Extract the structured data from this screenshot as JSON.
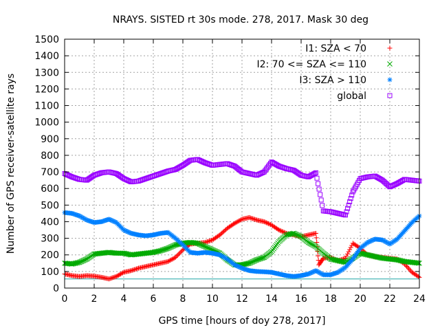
{
  "chart_data": {
    "type": "scatter",
    "title": "NRAYS. SISTED rt 30s mode. 278, 2017. Mask 30 deg",
    "xlabel": "GPS time [hours of doy 278, 2017]",
    "ylabel": "Number of GPS receiver-satellite rays",
    "xlim": [
      0,
      24
    ],
    "ylim": [
      0,
      1500
    ],
    "xticks": [
      "0",
      "2",
      "4",
      "6",
      "8",
      "10",
      "12",
      "14",
      "16",
      "18",
      "20",
      "22",
      "24"
    ],
    "yticks": [
      "0",
      "100",
      "200",
      "300",
      "400",
      "500",
      "600",
      "700",
      "800",
      "900",
      "1000",
      "1100",
      "1200",
      "1300",
      "1400",
      "1500"
    ],
    "grid": true,
    "legend_position": "top-right",
    "reference_line": {
      "y": 55,
      "color": "#1fa5a5"
    },
    "series": [
      {
        "name": "I1: SZA < 70",
        "marker": "+",
        "color": "#ff0000",
        "points": [
          [
            0,
            85
          ],
          [
            0.5,
            75
          ],
          [
            1,
            70
          ],
          [
            1.5,
            75
          ],
          [
            2,
            72
          ],
          [
            2.5,
            65
          ],
          [
            3,
            55
          ],
          [
            3.5,
            70
          ],
          [
            4,
            95
          ],
          [
            4.5,
            105
          ],
          [
            5,
            120
          ],
          [
            5.5,
            130
          ],
          [
            6,
            140
          ],
          [
            6.5,
            150
          ],
          [
            7,
            160
          ],
          [
            7.5,
            185
          ],
          [
            8,
            230
          ],
          [
            8.5,
            265
          ],
          [
            9,
            270
          ],
          [
            9.5,
            275
          ],
          [
            10,
            290
          ],
          [
            10.5,
            320
          ],
          [
            11,
            360
          ],
          [
            11.5,
            390
          ],
          [
            12,
            415
          ],
          [
            12.5,
            425
          ],
          [
            13,
            410
          ],
          [
            13.5,
            400
          ],
          [
            14,
            380
          ],
          [
            14.5,
            350
          ],
          [
            15,
            330
          ],
          [
            15.5,
            320
          ],
          [
            16,
            310
          ],
          [
            16.5,
            320
          ],
          [
            17,
            330
          ],
          [
            17.2,
            140
          ],
          [
            17.5,
            180
          ],
          [
            18,
            185
          ],
          [
            18.5,
            165
          ],
          [
            19,
            180
          ],
          [
            19.5,
            270
          ],
          [
            20,
            240
          ],
          [
            20.5,
            200
          ],
          [
            21,
            190
          ],
          [
            21.5,
            185
          ],
          [
            22,
            180
          ],
          [
            22.5,
            175
          ],
          [
            23,
            145
          ],
          [
            23.5,
            95
          ],
          [
            24,
            65
          ]
        ]
      },
      {
        "name": "I2: 70 <= SZA <= 110",
        "marker": "x",
        "color": "#00aa00",
        "points": [
          [
            0,
            150
          ],
          [
            0.5,
            145
          ],
          [
            1,
            155
          ],
          [
            1.5,
            175
          ],
          [
            2,
            205
          ],
          [
            2.5,
            210
          ],
          [
            3,
            215
          ],
          [
            3.5,
            210
          ],
          [
            4,
            210
          ],
          [
            4.5,
            200
          ],
          [
            5,
            205
          ],
          [
            5.5,
            210
          ],
          [
            6,
            215
          ],
          [
            6.5,
            225
          ],
          [
            7,
            240
          ],
          [
            7.5,
            260
          ],
          [
            8,
            270
          ],
          [
            8.5,
            275
          ],
          [
            9,
            270
          ],
          [
            9.5,
            250
          ],
          [
            10,
            230
          ],
          [
            10.5,
            210
          ],
          [
            11,
            170
          ],
          [
            11.5,
            140
          ],
          [
            12,
            140
          ],
          [
            12.5,
            150
          ],
          [
            13,
            170
          ],
          [
            13.5,
            185
          ],
          [
            14,
            220
          ],
          [
            14.5,
            280
          ],
          [
            15,
            320
          ],
          [
            15.5,
            330
          ],
          [
            16,
            310
          ],
          [
            16.5,
            275
          ],
          [
            17,
            250
          ],
          [
            17.5,
            210
          ],
          [
            18,
            175
          ],
          [
            18.5,
            165
          ],
          [
            19,
            155
          ],
          [
            19.5,
            180
          ],
          [
            20,
            210
          ],
          [
            20.5,
            200
          ],
          [
            21,
            190
          ],
          [
            21.5,
            180
          ],
          [
            22,
            175
          ],
          [
            22.5,
            170
          ],
          [
            23,
            160
          ],
          [
            23.5,
            155
          ],
          [
            24,
            150
          ]
        ]
      },
      {
        "name": "I3: SZA > 110",
        "marker": "*",
        "color": "#0080ff",
        "points": [
          [
            0,
            455
          ],
          [
            0.5,
            450
          ],
          [
            1,
            435
          ],
          [
            1.5,
            410
          ],
          [
            2,
            395
          ],
          [
            2.5,
            400
          ],
          [
            3,
            415
          ],
          [
            3.5,
            395
          ],
          [
            4,
            350
          ],
          [
            4.5,
            330
          ],
          [
            5,
            320
          ],
          [
            5.5,
            315
          ],
          [
            6,
            320
          ],
          [
            6.5,
            330
          ],
          [
            7,
            335
          ],
          [
            7.5,
            300
          ],
          [
            8,
            260
          ],
          [
            8.5,
            215
          ],
          [
            9,
            210
          ],
          [
            9.5,
            215
          ],
          [
            10,
            210
          ],
          [
            10.5,
            200
          ],
          [
            11,
            175
          ],
          [
            11.5,
            140
          ],
          [
            12,
            120
          ],
          [
            12.5,
            105
          ],
          [
            13,
            100
          ],
          [
            13.5,
            98
          ],
          [
            14,
            95
          ],
          [
            14.5,
            85
          ],
          [
            15,
            75
          ],
          [
            15.5,
            70
          ],
          [
            16,
            75
          ],
          [
            16.5,
            85
          ],
          [
            17,
            105
          ],
          [
            17.5,
            80
          ],
          [
            18,
            80
          ],
          [
            18.5,
            95
          ],
          [
            19,
            125
          ],
          [
            19.5,
            175
          ],
          [
            20,
            240
          ],
          [
            20.5,
            275
          ],
          [
            21,
            295
          ],
          [
            21.5,
            290
          ],
          [
            22,
            265
          ],
          [
            22.5,
            295
          ],
          [
            23,
            345
          ],
          [
            23.5,
            395
          ],
          [
            24,
            435
          ]
        ]
      },
      {
        "name": "global",
        "marker": "square",
        "color": "#9900ff",
        "points": [
          [
            0,
            690
          ],
          [
            0.5,
            670
          ],
          [
            1,
            655
          ],
          [
            1.5,
            650
          ],
          [
            2,
            680
          ],
          [
            2.5,
            695
          ],
          [
            3,
            700
          ],
          [
            3.5,
            690
          ],
          [
            4,
            660
          ],
          [
            4.5,
            640
          ],
          [
            5,
            645
          ],
          [
            5.5,
            660
          ],
          [
            6,
            675
          ],
          [
            6.5,
            690
          ],
          [
            7,
            705
          ],
          [
            7.5,
            715
          ],
          [
            8,
            740
          ],
          [
            8.5,
            770
          ],
          [
            9,
            775
          ],
          [
            9.5,
            755
          ],
          [
            10,
            740
          ],
          [
            10.5,
            745
          ],
          [
            11,
            750
          ],
          [
            11.5,
            735
          ],
          [
            12,
            700
          ],
          [
            12.5,
            690
          ],
          [
            13,
            680
          ],
          [
            13.5,
            700
          ],
          [
            14,
            760
          ],
          [
            14.5,
            735
          ],
          [
            15,
            720
          ],
          [
            15.5,
            710
          ],
          [
            16,
            680
          ],
          [
            16.5,
            670
          ],
          [
            17,
            695
          ],
          [
            17.5,
            465
          ],
          [
            18,
            460
          ],
          [
            18.5,
            450
          ],
          [
            19,
            440
          ],
          [
            19.5,
            580
          ],
          [
            20,
            660
          ],
          [
            20.5,
            670
          ],
          [
            21,
            675
          ],
          [
            21.5,
            650
          ],
          [
            22,
            610
          ],
          [
            22.5,
            630
          ],
          [
            23,
            655
          ],
          [
            23.5,
            650
          ],
          [
            24,
            645
          ]
        ]
      }
    ]
  }
}
